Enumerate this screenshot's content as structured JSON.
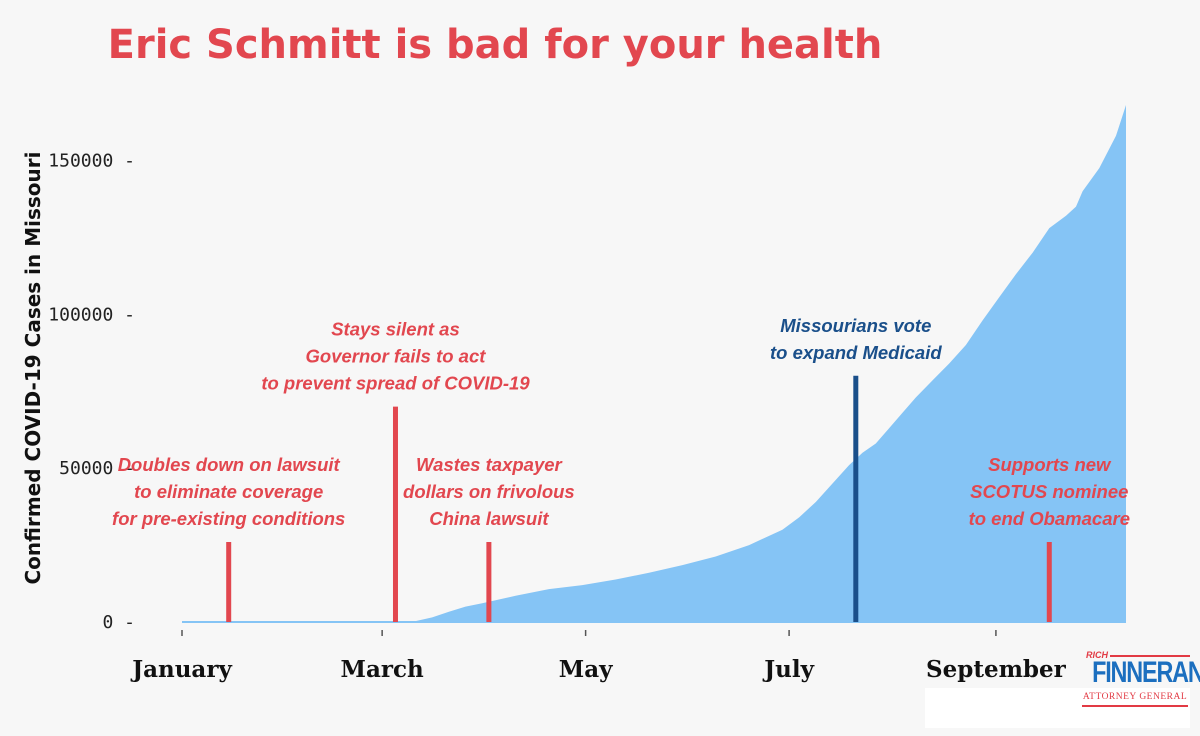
{
  "chart_data": {
    "type": "area",
    "title": "Eric Schmitt is bad for your health",
    "ylabel": "Confirmed COVID-19 Cases in Missouri",
    "xlabel": "",
    "ylim": [
      0,
      168000
    ],
    "yticks": [
      {
        "value": 0,
        "label": "0 -"
      },
      {
        "value": 50000,
        "label": "50000 -"
      },
      {
        "value": 100000,
        "label": "100000 -"
      },
      {
        "value": 150000,
        "label": "150000 -"
      }
    ],
    "xticks": [
      {
        "day": 0,
        "label": "January"
      },
      {
        "day": 60,
        "label": "March"
      },
      {
        "day": 121,
        "label": "May"
      },
      {
        "day": 182,
        "label": "July"
      },
      {
        "day": 244,
        "label": "September"
      }
    ],
    "series": [
      {
        "x": [
          0,
          65,
          70,
          75,
          80,
          85,
          90,
          95,
          100,
          110,
          120,
          130,
          140,
          150,
          160,
          170,
          180,
          185,
          190,
          195,
          200,
          204,
          208,
          212,
          216,
          220,
          225,
          230,
          235,
          240,
          245,
          250,
          255,
          260,
          265,
          268,
          270,
          275,
          280,
          283
        ],
        "y": [
          0,
          0,
          300,
          1500,
          3300,
          5000,
          6100,
          7300,
          8500,
          10700,
          12000,
          13800,
          16000,
          18500,
          21300,
          25000,
          30000,
          34000,
          39000,
          45000,
          51000,
          55000,
          58000,
          63000,
          68000,
          73000,
          78500,
          84000,
          90000,
          98000,
          105500,
          113000,
          120000,
          128000,
          132000,
          135000,
          140000,
          147500,
          158000,
          168000
        ],
        "color": "#85c4f5"
      }
    ],
    "annotations": [
      {
        "day": 14,
        "height": 26000,
        "color": "#e2474f",
        "lines": [
          "Doubles down on lawsuit",
          "to eliminate coverage",
          "for pre-existing conditions"
        ]
      },
      {
        "day": 64,
        "height": 70000,
        "color": "#e2474f",
        "lines": [
          "Stays silent as",
          "Governor fails to act",
          "to prevent spread of COVID-19"
        ]
      },
      {
        "day": 92,
        "height": 26000,
        "color": "#e2474f",
        "lines": [
          "Wastes taxpayer",
          "dollars on frivolous",
          "China lawsuit"
        ]
      },
      {
        "day": 202,
        "height": 80000,
        "color": "#1a4f8a",
        "lines": [
          "Missourians vote",
          "to expand Medicaid"
        ]
      },
      {
        "day": 260,
        "height": 26000,
        "color": "#e2474f",
        "lines": [
          "Supports new",
          "SCOTUS nominee",
          "to end Obamacare"
        ]
      }
    ],
    "colors": {
      "title": "#e2474f",
      "area": "#85c4f5",
      "baseline": "#85c4f5"
    }
  },
  "logo": {
    "top": "RICH",
    "name": "FINNERAN",
    "subtitle": "ATTORNEY GENERAL"
  }
}
